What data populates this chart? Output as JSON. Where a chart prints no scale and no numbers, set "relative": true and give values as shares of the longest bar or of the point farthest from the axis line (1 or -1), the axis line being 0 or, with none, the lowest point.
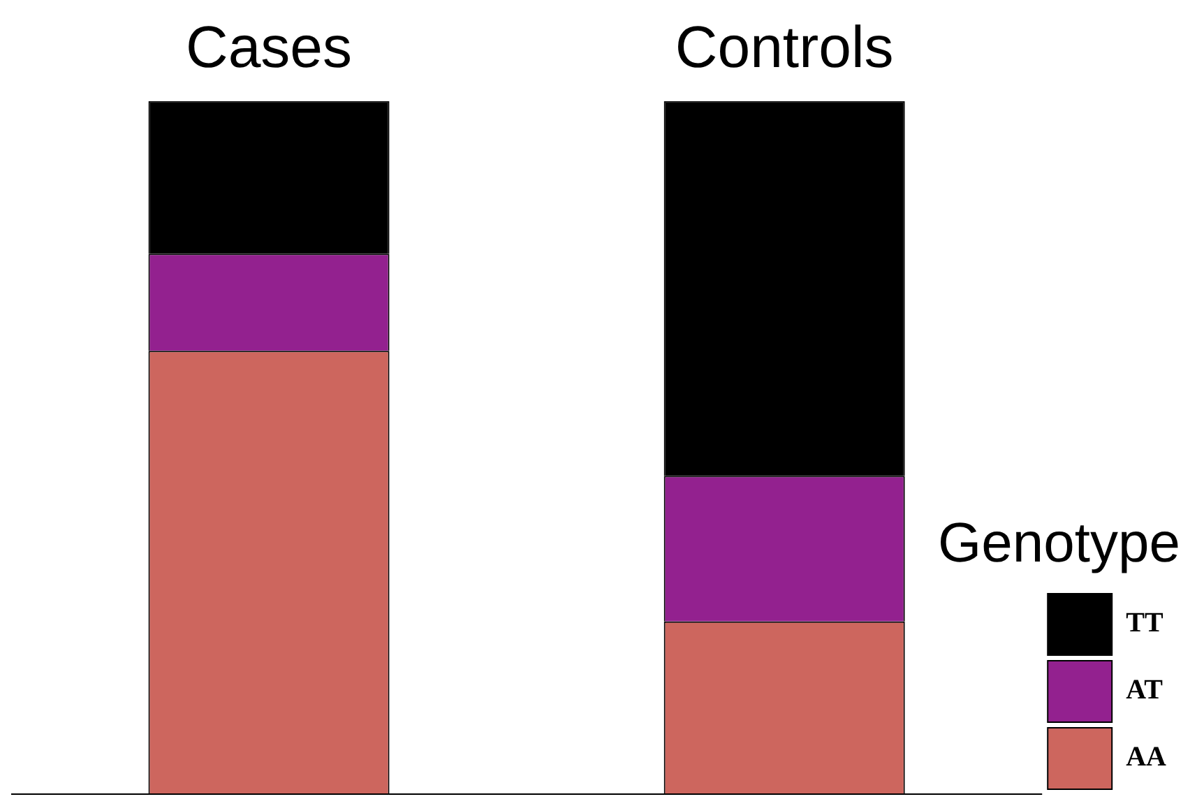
{
  "chart_data": {
    "type": "bar",
    "stacked": true,
    "relative": true,
    "legend_title": "Genotype",
    "legend": "bottom right",
    "grid": false,
    "categories": [
      "Cases",
      "Controls"
    ],
    "series": [
      {
        "name": "AA",
        "color": "#cd665e",
        "values": [
          0.64,
          0.25
        ]
      },
      {
        "name": "AT",
        "color": "#93218f",
        "values": [
          0.14,
          0.21
        ]
      },
      {
        "name": "TT",
        "color": "#000000",
        "values": [
          0.22,
          0.54
        ]
      }
    ]
  }
}
